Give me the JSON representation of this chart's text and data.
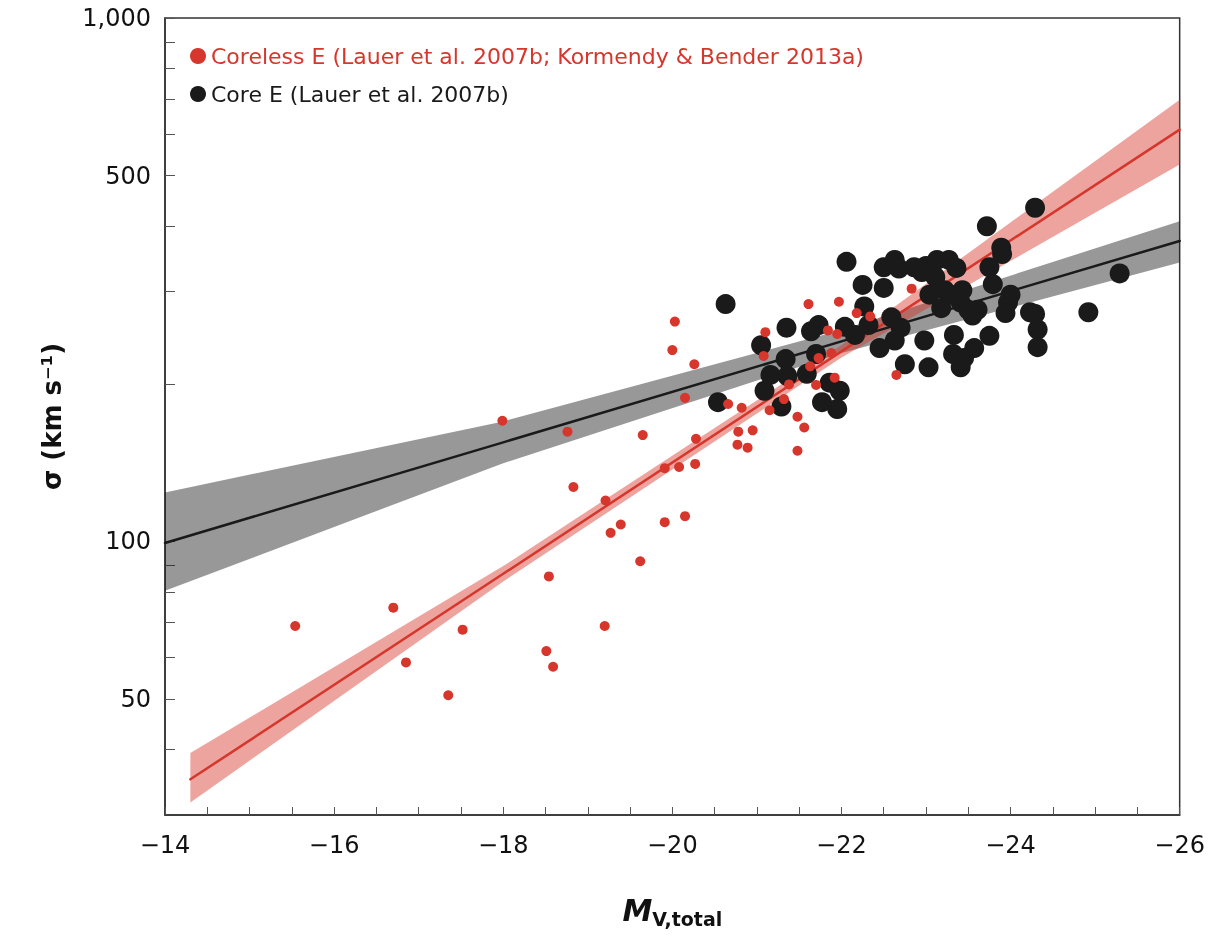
{
  "chart_data": {
    "type": "scatter",
    "xlabel": "M$_{V,total}$",
    "ylabel": "σ (km s⁻¹)",
    "log": "y",
    "grid": false,
    "legend": "top left",
    "marker": "circle",
    "xlim": [
      -14,
      -26
    ],
    "xticks": [
      -14,
      {
        "value": -14.5,
        "label": null
      },
      {
        "value": -15,
        "label": null
      },
      {
        "value": -15.5,
        "label": null
      },
      -16,
      {
        "value": -16.5,
        "label": null
      },
      {
        "value": -17,
        "label": null
      },
      {
        "value": -17.5,
        "label": null
      },
      -18,
      {
        "value": -18.5,
        "label": null
      },
      {
        "value": -19,
        "label": null
      },
      {
        "value": -19.5,
        "label": null
      },
      -20,
      {
        "value": -20.5,
        "label": null
      },
      {
        "value": -21,
        "label": null
      },
      {
        "value": -21.5,
        "label": null
      },
      -22,
      {
        "value": -22.5,
        "label": null
      },
      {
        "value": -23,
        "label": null
      },
      {
        "value": -23.5,
        "label": null
      },
      -24,
      {
        "value": -24.5,
        "label": null
      },
      {
        "value": -25,
        "label": null
      },
      {
        "value": -25.5,
        "label": null
      },
      -26
    ],
    "ylim": [
      30,
      1000
    ],
    "yticks": [
      {
        "value": 40,
        "label": null
      },
      50,
      {
        "value": 60,
        "label": null
      },
      {
        "value": 70,
        "label": null
      },
      {
        "value": 80,
        "label": null
      },
      {
        "value": 90,
        "label": null
      },
      100,
      {
        "value": 200,
        "label": null
      },
      {
        "value": 300,
        "label": null
      },
      {
        "value": 400,
        "label": null
      },
      500,
      {
        "value": 600,
        "label": null
      },
      {
        "value": 700,
        "label": null
      },
      {
        "value": 800,
        "label": null
      },
      {
        "value": 900,
        "label": null
      },
      {
        "value": 1000,
        "label": "1,000"
      }
    ],
    "series": [
      {
        "type": "line",
        "marker": "none",
        "color": "#1a1a1a",
        "x": [
          -14,
          -18,
          -22,
          -26
        ],
        "values": [
          99.3,
          154.6,
          241,
          375
        ],
        "lower": [
          80.5,
          141,
          229,
          341
        ],
        "upper": [
          124,
          169.5,
          253.5,
          409
        ]
      },
      {
        "type": "line",
        "marker": "none",
        "color": "#d6362b",
        "x": [
          -14.3,
          -18,
          -22,
          -26
        ],
        "values": [
          35.1,
          86.7,
          230.7,
          612
        ],
        "lower": [
          31.7,
          83.8,
          224.5,
          525
        ],
        "upper": [
          39.4,
          89.7,
          237,
          698
        ]
      },
      {
        "name": "Core E (Lauer et al. 2007b)",
        "color": "#1a1a1a",
        "x": [
          -20.63,
          -20.54,
          -21.35,
          -21.05,
          -21.64,
          -21.73,
          -21.34,
          -21.16,
          -21.09,
          -21.36,
          -21.29,
          -21.59,
          -21.7,
          -21.77,
          -21.86,
          -21.95,
          -21.98,
          -22.04,
          -22.06,
          -22.16,
          -22.25,
          -22.27,
          -22.32,
          -22.45,
          -22.5,
          -22.5,
          -22.63,
          -22.68,
          -22.59,
          -22.63,
          -22.7,
          -22.75,
          -22.86,
          -22.95,
          -23.0,
          -23.04,
          -22.98,
          -23.03,
          -23.13,
          -23.11,
          -23.18,
          -23.22,
          -23.27,
          -23.36,
          -23.33,
          -23.32,
          -23.41,
          -23.45,
          -23.29,
          -23.43,
          -23.41,
          -23.5,
          -23.55,
          -23.57,
          -23.61,
          -23.75,
          -23.72,
          -23.75,
          -23.79,
          -23.89,
          -23.9,
          -24.0,
          -23.97,
          -23.94,
          -24.23,
          -24.29,
          -24.32,
          -24.32,
          -24.29,
          -24.92,
          -25.29
        ],
        "values": [
          284,
          184.5,
          256,
          237,
          252,
          259,
          223,
          208,
          194,
          207,
          181,
          209,
          228,
          184.5,
          201,
          179,
          194,
          257,
          342,
          248,
          309,
          281,
          259,
          234,
          305,
          334,
          345,
          332,
          268,
          242,
          256,
          218,
          334,
          327,
          336,
          296,
          242,
          215,
          345,
          320,
          279,
          302,
          345,
          333,
          248,
          228,
          215,
          224,
          296,
          302,
          286,
          277,
          270,
          234,
          277,
          247,
          400,
          334,
          310,
          364,
          354,
          296,
          286,
          273,
          274,
          272,
          254,
          235,
          434,
          274,
          325
        ]
      },
      {
        "name": "Coreless E (Lauer et al. 2007b; Kormendy & Bender 2013a)",
        "color": "#d6362b",
        "x": [
          -15.54,
          -16.7,
          -16.85,
          -17.52,
          -17.35,
          -17.99,
          -18.76,
          -18.83,
          -18.54,
          -18.51,
          -18.59,
          -19.21,
          -19.27,
          -19.29,
          -19.39,
          -19.2,
          -19.65,
          -19.62,
          -19.91,
          -19.91,
          -20.08,
          -20.15,
          -20.15,
          -20.27,
          -20.28,
          -20.03,
          -20.0,
          -20.26,
          -21.61,
          -21.97,
          -22.18,
          -22.34,
          -21.1,
          -21.08,
          -20.66,
          -20.82,
          -20.78,
          -20.77,
          -20.89,
          -20.95,
          -21.15,
          -21.38,
          -21.32,
          -21.48,
          -21.56,
          -21.48,
          -21.63,
          -21.73,
          -21.7,
          -21.92,
          -21.84,
          -21.95,
          -21.88,
          -22.65,
          -22.83
        ],
        "values": [
          68.9,
          74.7,
          58.7,
          67.8,
          50.8,
          170,
          162,
          127,
          85.7,
          61.7,
          57.6,
          119.7,
          103.8,
          null,
          107.7,
          68.9,
          159.6,
          91.6,
          108.8,
          138,
          138.7,
          111.7,
          188,
          140.6,
          157,
          263,
          232,
          218,
          284,
          287,
          273,
          269,
          251,
          226,
          183,
          180,
          162,
          153,
          151,
          163,
          178,
          199.5,
          187,
          173,
          165,
          149,
          216,
          224,
          199,
          205.5,
          253,
          249,
          229,
          208,
          304
        ]
      }
    ]
  }
}
